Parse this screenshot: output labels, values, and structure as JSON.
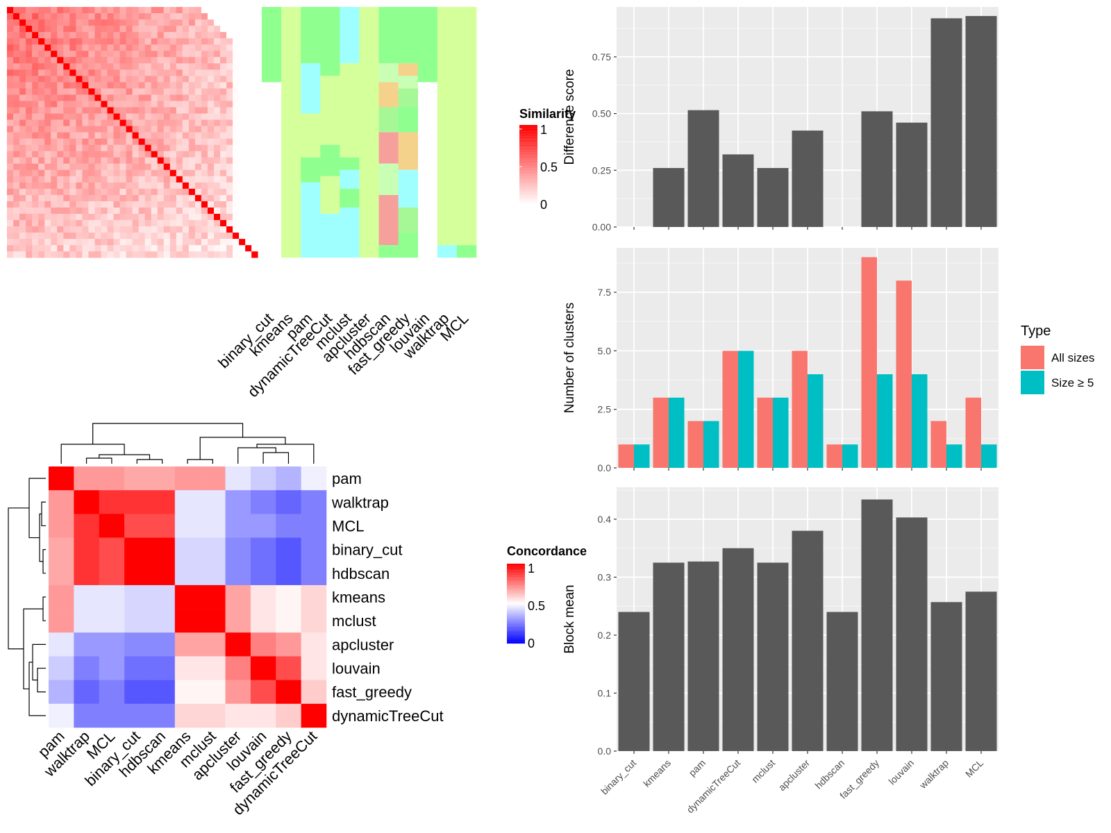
{
  "chart_data": [
    {
      "type": "heatmap",
      "id": "similarity_heatmap",
      "legend_title": "Similarity",
      "legend_ticks": [
        1,
        0.5,
        0
      ],
      "value_range": [
        0,
        1
      ],
      "n_items": 40,
      "method_labels": [
        "binary_cut",
        "kmeans",
        "pam",
        "dynamicTreeCut",
        "mclust",
        "apcluster",
        "hdbscan",
        "fast_greedy",
        "louvain",
        "walktrap",
        "MCL"
      ],
      "colors": {
        "low": "#ffffff",
        "high": "#ff0000"
      }
    },
    {
      "type": "heatmap",
      "id": "concordance_heatmap",
      "legend_title": "Concordance",
      "legend_ticks": [
        1,
        0.5,
        0
      ],
      "row_labels": [
        "pam",
        "walktrap",
        "MCL",
        "binary_cut",
        "hdbscan",
        "kmeans",
        "mclust",
        "apcluster",
        "louvain",
        "fast_greedy",
        "dynamicTreeCut"
      ],
      "col_labels": [
        "pam",
        "walktrap",
        "MCL",
        "binary_cut",
        "hdbscan",
        "kmeans",
        "mclust",
        "apcluster",
        "louvain",
        "fast_greedy",
        "dynamicTreeCut"
      ],
      "matrix": [
        [
          1.0,
          0.7,
          0.7,
          0.67,
          0.67,
          0.7,
          0.7,
          0.45,
          0.4,
          0.35,
          0.47
        ],
        [
          0.7,
          1.0,
          0.9,
          0.9,
          0.9,
          0.45,
          0.45,
          0.3,
          0.25,
          0.2,
          0.25
        ],
        [
          0.7,
          0.9,
          1.0,
          0.85,
          0.85,
          0.45,
          0.45,
          0.3,
          0.3,
          0.25,
          0.25
        ],
        [
          0.67,
          0.9,
          0.85,
          1.0,
          1.0,
          0.42,
          0.42,
          0.27,
          0.22,
          0.17,
          0.25
        ],
        [
          0.67,
          0.9,
          0.85,
          1.0,
          1.0,
          0.42,
          0.42,
          0.27,
          0.22,
          0.17,
          0.25
        ],
        [
          0.7,
          0.45,
          0.45,
          0.42,
          0.42,
          1.0,
          1.0,
          0.68,
          0.55,
          0.52,
          0.58
        ],
        [
          0.7,
          0.45,
          0.45,
          0.42,
          0.42,
          1.0,
          1.0,
          0.68,
          0.55,
          0.52,
          0.58
        ],
        [
          0.45,
          0.3,
          0.3,
          0.27,
          0.27,
          0.68,
          0.68,
          1.0,
          0.75,
          0.7,
          0.55
        ],
        [
          0.4,
          0.25,
          0.3,
          0.22,
          0.22,
          0.55,
          0.55,
          0.75,
          1.0,
          0.85,
          0.55
        ],
        [
          0.35,
          0.2,
          0.25,
          0.17,
          0.17,
          0.52,
          0.52,
          0.7,
          0.85,
          1.0,
          0.6
        ],
        [
          0.47,
          0.25,
          0.25,
          0.25,
          0.25,
          0.58,
          0.58,
          0.55,
          0.55,
          0.6,
          1.0
        ]
      ],
      "colors": {
        "low": "#0000ff",
        "mid": "#ffffff",
        "high": "#ff0000"
      }
    },
    {
      "type": "bar",
      "id": "difference_score",
      "categories": [
        "binary_cut",
        "kmeans",
        "pam",
        "dynamicTreeCut",
        "mclust",
        "apcluster",
        "hdbscan",
        "fast_greedy",
        "louvain",
        "walktrap",
        "MCL"
      ],
      "values": [
        0,
        0.26,
        0.515,
        0.32,
        0.26,
        0.425,
        0,
        0.51,
        0.46,
        0.92,
        0.93
      ],
      "ylabel": "Difference score",
      "ylim": [
        0,
        0.97
      ],
      "yticks": [
        0,
        0.25,
        0.5,
        0.75
      ],
      "ytick_labels": [
        "0.00",
        "0.25",
        "0.50",
        "0.75"
      ],
      "grid": true,
      "color": "#595959"
    },
    {
      "type": "bar",
      "id": "number_of_clusters",
      "categories": [
        "binary_cut",
        "kmeans",
        "pam",
        "dynamicTreeCut",
        "mclust",
        "apcluster",
        "hdbscan",
        "fast_greedy",
        "louvain",
        "walktrap",
        "MCL"
      ],
      "series": [
        {
          "name": "All sizes",
          "values": [
            1,
            3,
            2,
            5,
            3,
            5,
            1,
            9,
            8,
            2,
            3
          ],
          "color": "#F8766D"
        },
        {
          "name": "Size ≥ 5",
          "values": [
            1,
            3,
            2,
            5,
            3,
            4,
            1,
            4,
            4,
            1,
            1
          ],
          "color": "#00BFC4"
        }
      ],
      "ylabel": "Number of clusters",
      "ylim": [
        0,
        9.4
      ],
      "yticks": [
        0,
        2.5,
        5,
        7.5
      ],
      "ytick_labels": [
        "0.0",
        "2.5",
        "5.0",
        "7.5"
      ],
      "legend_title": "Type",
      "legend": "right",
      "grid": true
    },
    {
      "type": "bar",
      "id": "block_mean",
      "categories": [
        "binary_cut",
        "kmeans",
        "pam",
        "dynamicTreeCut",
        "mclust",
        "apcluster",
        "hdbscan",
        "fast_greedy",
        "louvain",
        "walktrap",
        "MCL"
      ],
      "values": [
        0.24,
        0.325,
        0.327,
        0.35,
        0.325,
        0.38,
        0.24,
        0.434,
        0.403,
        0.257,
        0.275
      ],
      "ylabel": "Block mean",
      "ylim": [
        0,
        0.455
      ],
      "yticks": [
        0,
        0.1,
        0.2,
        0.3,
        0.4
      ],
      "ytick_labels": [
        "0.0",
        "0.1",
        "0.2",
        "0.3",
        "0.4"
      ],
      "grid": true,
      "color": "#595959"
    }
  ]
}
